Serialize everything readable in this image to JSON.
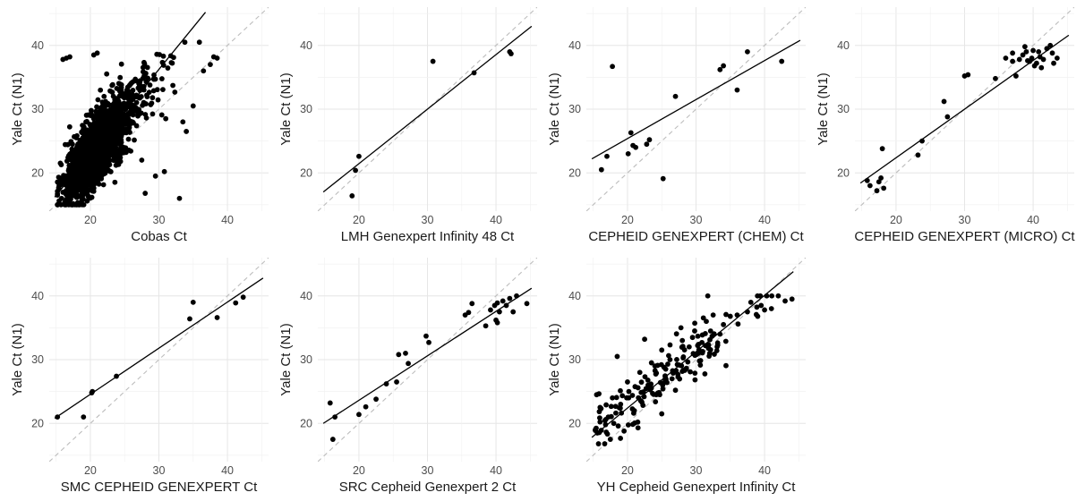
{
  "chart_data": [
    {
      "type": "scatter",
      "xlabel": "Cobas Ct",
      "ylabel": "Yale Ct (N1)",
      "x_ticks": [
        20,
        30,
        40
      ],
      "y_ticks": [
        20,
        30,
        40
      ],
      "xlim": [
        14,
        46
      ],
      "ylim": [
        14,
        46
      ],
      "grid": true,
      "identity_line": "dashed",
      "fit_line": {
        "x": [
          14.8,
          36.8
        ],
        "y": [
          16.2,
          45.2
        ]
      },
      "points_note": "dense cloud (~2000 points)",
      "series": [
        {
          "x": [
            16.0,
            16.5,
            17.0,
            15.8,
            38.0,
            20.5,
            21.0,
            28.0,
            30.8,
            33.0,
            35.0,
            36.5,
            37.5,
            38.5,
            27.5,
            29.5,
            31.0,
            18.5,
            16.5,
            22.0,
            24.5,
            33.5,
            34.0
          ],
          "y": [
            37.8,
            38.0,
            38.2,
            16.0,
            38.2,
            38.5,
            38.8,
            16.8,
            20.2,
            16.0,
            30.5,
            36.0,
            37.0,
            38.0,
            22.0,
            19.5,
            28.5,
            15.3,
            15.8,
            32.0,
            33.0,
            28.0,
            26.5
          ]
        }
      ]
    },
    {
      "type": "scatter",
      "xlabel": "LMH Genexpert Infinity 48 Ct",
      "ylabel": "Yale Ct (N1)",
      "x_ticks": [
        20,
        30,
        40
      ],
      "y_ticks": [
        20,
        30,
        40
      ],
      "xlim": [
        14,
        46
      ],
      "ylim": [
        14,
        46
      ],
      "grid": true,
      "identity_line": "dashed",
      "fit_line": {
        "x": [
          14.8,
          45.2
        ],
        "y": [
          17.0,
          43.0
        ]
      },
      "series": [
        {
          "x": [
            19.0,
            19.5,
            20.0,
            30.8,
            36.8,
            42.0,
            42.2
          ],
          "y": [
            16.4,
            20.4,
            22.6,
            37.5,
            35.7,
            39.0,
            38.7
          ]
        }
      ]
    },
    {
      "type": "scatter",
      "xlabel": "CEPHEID GENEXPERT (CHEM) Ct",
      "ylabel": "Yale Ct (N1)",
      "x_ticks": [
        20,
        30,
        40
      ],
      "y_ticks": [
        20,
        30,
        40
      ],
      "xlim": [
        14,
        46
      ],
      "ylim": [
        14,
        46
      ],
      "grid": true,
      "identity_line": "dashed",
      "fit_line": {
        "x": [
          14.8,
          45.2
        ],
        "y": [
          22.2,
          40.8
        ]
      },
      "series": [
        {
          "x": [
            16.2,
            17.0,
            17.8,
            20.1,
            20.5,
            20.8,
            21.2,
            22.8,
            23.2,
            25.2,
            27.0,
            33.5,
            34.0,
            36.0,
            37.5,
            42.5
          ],
          "y": [
            20.5,
            22.6,
            36.7,
            23.0,
            26.3,
            24.3,
            24.0,
            24.5,
            25.2,
            19.1,
            32.0,
            36.2,
            36.8,
            33.0,
            39.0,
            37.5
          ]
        }
      ]
    },
    {
      "type": "scatter",
      "xlabel": "CEPHEID GENEXPERT (MICRO) Ct",
      "ylabel": "Yale Ct (N1)",
      "x_ticks": [
        20,
        30,
        40
      ],
      "y_ticks": [
        20,
        30,
        40
      ],
      "xlim": [
        14,
        46
      ],
      "ylim": [
        14,
        46
      ],
      "grid": true,
      "identity_line": "dashed",
      "fit_line": {
        "x": [
          14.8,
          45.2
        ],
        "y": [
          18.4,
          41.6
        ]
      },
      "series": [
        {
          "x": [
            15.8,
            16.2,
            17.5,
            17.2,
            17.8,
            18.2,
            18.0,
            23.2,
            23.8,
            27.0,
            27.5,
            30.0,
            30.5,
            34.5,
            36.0,
            37.0,
            37.5,
            38.0,
            38.5,
            39.0,
            39.5,
            39.8,
            40.0,
            40.2,
            40.5,
            40.8,
            41.0,
            41.2,
            41.5,
            42.0,
            42.5,
            42.8,
            43.0,
            43.5,
            37.0,
            38.8,
            39.2
          ],
          "y": [
            18.8,
            18.0,
            18.6,
            17.2,
            19.2,
            17.6,
            23.8,
            22.8,
            25.0,
            31.2,
            28.8,
            35.2,
            35.4,
            34.8,
            38.0,
            37.5,
            35.2,
            37.8,
            38.5,
            39.0,
            37.5,
            38.0,
            39.2,
            36.8,
            37.2,
            39.0,
            38.2,
            36.5,
            37.8,
            39.5,
            40.0,
            38.8,
            37.2,
            38.0,
            38.8,
            39.8,
            37.6
          ]
        }
      ]
    },
    {
      "type": "scatter",
      "xlabel": "SMC CEPHEID GENEXPERT Ct",
      "ylabel": "Yale Ct (N1)",
      "x_ticks": [
        20,
        30,
        40
      ],
      "y_ticks": [
        20,
        30,
        40
      ],
      "xlim": [
        14,
        46
      ],
      "ylim": [
        14,
        46
      ],
      "grid": true,
      "identity_line": "dashed",
      "fit_line": {
        "x": [
          14.8,
          45.2
        ],
        "y": [
          20.8,
          42.8
        ]
      },
      "series": [
        {
          "x": [
            15.2,
            19.0,
            20.2,
            20.3,
            23.8,
            34.5,
            35.0,
            38.5,
            41.2,
            42.3
          ],
          "y": [
            21.0,
            21.0,
            24.8,
            25.0,
            27.4,
            36.4,
            39.0,
            36.6,
            38.9,
            39.8
          ]
        }
      ]
    },
    {
      "type": "scatter",
      "xlabel": "SRC Cepheid Genexpert 2 Ct",
      "ylabel": "Yale Ct (N1)",
      "x_ticks": [
        20,
        30,
        40
      ],
      "y_ticks": [
        20,
        30,
        40
      ],
      "xlim": [
        14,
        46
      ],
      "ylim": [
        14,
        46
      ],
      "grid": true,
      "identity_line": "dashed",
      "fit_line": {
        "x": [
          14.8,
          45.2
        ],
        "y": [
          20.0,
          41.2
        ]
      },
      "series": [
        {
          "x": [
            15.8,
            16.2,
            16.5,
            20.0,
            21.0,
            22.5,
            24.0,
            25.5,
            25.8,
            26.8,
            27.2,
            29.8,
            30.2,
            35.5,
            36.0,
            36.5,
            38.5,
            39.2,
            39.8,
            40.0,
            40.2,
            40.5,
            41.0,
            41.5,
            42.0,
            42.5,
            43.0,
            44.5,
            40.2
          ],
          "y": [
            23.2,
            17.5,
            21.0,
            21.4,
            22.6,
            23.8,
            26.2,
            26.5,
            30.8,
            31.0,
            29.4,
            33.7,
            32.7,
            37.0,
            37.4,
            38.8,
            35.3,
            37.8,
            38.5,
            36.2,
            38.9,
            37.5,
            39.2,
            38.5,
            39.6,
            37.5,
            40.0,
            38.8,
            35.8
          ]
        }
      ]
    },
    {
      "type": "scatter",
      "xlabel": "YH Cepheid Genexpert Infinity Ct",
      "ylabel": "Yale Ct (N1)",
      "x_ticks": [
        20,
        30,
        40
      ],
      "y_ticks": [
        20,
        30,
        40
      ],
      "xlim": [
        14,
        46
      ],
      "ylim": [
        14,
        46
      ],
      "grid": true,
      "identity_line": "dashed",
      "fit_line": {
        "x": [
          14.8,
          44.2
        ],
        "y": [
          17.8,
          43.8
        ]
      },
      "points_note": "~200 points",
      "series": [
        {
          "x": [
            15.6,
            16.0,
            16.8,
            17.2,
            17.8,
            18.5,
            19.0,
            19.5,
            20.2,
            21.0,
            21.8,
            22.5,
            23.0,
            23.5,
            24.2,
            25.0,
            25.5,
            26.2,
            27.0,
            27.8,
            28.5,
            29.0,
            29.8,
            30.5,
            31.5,
            32.0,
            32.5,
            33.5,
            34.0,
            35.0,
            36.0,
            37.5,
            38.0,
            39.0,
            39.5,
            40.0,
            41.0,
            42.0,
            43.0,
            44.0,
            15.5,
            17.5,
            21.5,
            26.5,
            22.0,
            25.0,
            28.0,
            18.0,
            20.0,
            24.0
          ],
          "y": [
            18.5,
            22.5,
            19.8,
            21.0,
            24.0,
            30.5,
            23.0,
            18.8,
            25.0,
            22.0,
            28.0,
            33.2,
            26.0,
            29.5,
            24.5,
            31.5,
            26.8,
            30.0,
            25.2,
            35.0,
            28.5,
            32.0,
            34.5,
            29.8,
            36.0,
            31.0,
            37.0,
            34.0,
            35.5,
            36.8,
            37.0,
            37.5,
            39.0,
            36.8,
            38.5,
            37.8,
            38.0,
            40.0,
            39.2,
            39.5,
            24.5,
            17.5,
            20.2,
            27.0,
            23.5,
            21.5,
            33.0,
            20.0,
            26.5,
            29.0
          ]
        }
      ]
    }
  ]
}
